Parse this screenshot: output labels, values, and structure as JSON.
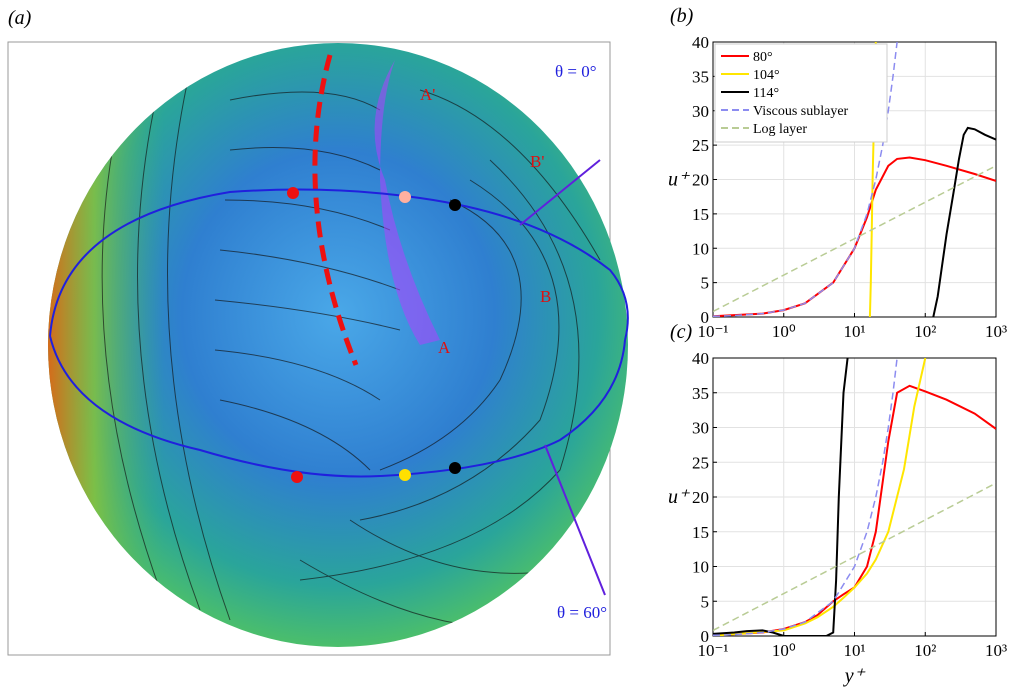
{
  "panel_a": {
    "label": "(a)",
    "annotations": [
      "A'",
      "B'",
      "B",
      "A",
      "θ = 0°",
      "θ = 60°"
    ]
  },
  "chart_data": [
    {
      "type": "line",
      "panel_label": "(b)",
      "y_label": "u⁺",
      "xscale": "log",
      "grid": true,
      "legend": "upper left",
      "xlim": [
        0.1,
        1000
      ],
      "ylim": [
        0,
        40
      ],
      "xticks": [
        {
          "value": 0.1,
          "label": "10⁻¹"
        },
        {
          "value": 1,
          "label": "10⁰"
        },
        {
          "value": 10,
          "label": "10¹"
        },
        {
          "value": 100,
          "label": "10²"
        },
        {
          "value": 1000,
          "label": "10³"
        }
      ],
      "yticks": [
        0,
        5,
        10,
        15,
        20,
        25,
        30,
        35,
        40
      ],
      "series": [
        {
          "name": "80°",
          "color": "#ff0000",
          "dashed": false,
          "x": [
            0.1,
            0.5,
            1,
            2,
            5,
            10,
            15,
            20,
            30,
            40,
            60,
            100,
            200,
            500,
            1000
          ],
          "values": [
            0.1,
            0.5,
            1,
            2,
            5,
            10,
            14.5,
            18.5,
            22,
            23,
            23.2,
            22.8,
            22,
            20.8,
            19.8
          ]
        },
        {
          "name": "104°",
          "color": "#ffe600",
          "dashed": false,
          "x": [
            16.5,
            17,
            17.5,
            18,
            19,
            20
          ],
          "values": [
            0,
            5,
            12,
            20,
            30,
            40
          ]
        },
        {
          "name": "114°",
          "color": "#000000",
          "dashed": false,
          "x": [
            130,
            150,
            170,
            200,
            250,
            300,
            350,
            400,
            500,
            700,
            1000
          ],
          "values": [
            0,
            3,
            7,
            12,
            18,
            23,
            26.5,
            27.5,
            27.3,
            26.5,
            25.8
          ]
        },
        {
          "name": "Viscous sublayer",
          "color": "#8c8cf0",
          "dashed": true,
          "x": [
            0.1,
            0.2,
            0.5,
            1,
            2,
            5,
            10,
            15,
            20,
            25,
            30,
            35,
            40
          ],
          "values": [
            0.1,
            0.2,
            0.5,
            1,
            2,
            5,
            10,
            15,
            20,
            25,
            30,
            35,
            40
          ]
        },
        {
          "name": "Log layer",
          "color": "#b9cc95",
          "dashed": true,
          "x": [
            0.1,
            1000
          ],
          "values": [
            0.8,
            22
          ]
        }
      ]
    },
    {
      "type": "line",
      "panel_label": "(c)",
      "y_label": "u⁺",
      "x_label": "y⁺",
      "xscale": "log",
      "grid": true,
      "xlim": [
        0.1,
        1000
      ],
      "ylim": [
        0,
        40
      ],
      "xticks": [
        {
          "value": 0.1,
          "label": "10⁻¹"
        },
        {
          "value": 1,
          "label": "10⁰"
        },
        {
          "value": 10,
          "label": "10¹"
        },
        {
          "value": 100,
          "label": "10²"
        },
        {
          "value": 1000,
          "label": "10³"
        }
      ],
      "yticks": [
        0,
        5,
        10,
        15,
        20,
        25,
        30,
        35,
        40
      ],
      "series": [
        {
          "color": "#ff0000",
          "dashed": false,
          "x": [
            0.1,
            0.5,
            1,
            2,
            3,
            5,
            7,
            10,
            15,
            20,
            30,
            40,
            60,
            100,
            200,
            500,
            1000
          ],
          "values": [
            0.1,
            0.5,
            1,
            2,
            3,
            5,
            6,
            7,
            10,
            15,
            28,
            35,
            36,
            35.2,
            34,
            32,
            29.8
          ]
        },
        {
          "color": "#ffe600",
          "dashed": false,
          "x": [
            0.1,
            1,
            2,
            3,
            5,
            7,
            10,
            15,
            20,
            30,
            50,
            70,
            100
          ],
          "values": [
            0.05,
            0.8,
            1.8,
            2.7,
            4.2,
            5.5,
            7,
            9,
            11,
            15,
            24,
            33,
            40
          ]
        },
        {
          "color": "#000000",
          "dashed": false,
          "x": [
            0.1,
            0.2,
            0.3,
            0.5,
            0.7,
            1,
            2,
            3,
            4,
            5,
            5.5,
            6,
            7,
            8
          ],
          "values": [
            0.3,
            0.5,
            0.7,
            0.8,
            0.5,
            0,
            0,
            0,
            0,
            0.5,
            8,
            20,
            35,
            40
          ]
        },
        {
          "color": "#8c8cf0",
          "dashed": true,
          "x": [
            0.1,
            0.2,
            0.5,
            1,
            2,
            5,
            10,
            15,
            20,
            25,
            30,
            35,
            40
          ],
          "values": [
            0.1,
            0.2,
            0.5,
            1,
            2,
            5,
            10,
            15,
            20,
            25,
            30,
            35,
            40
          ]
        },
        {
          "color": "#b9cc95",
          "dashed": true,
          "x": [
            0.1,
            1000
          ],
          "values": [
            0.8,
            22
          ]
        }
      ]
    }
  ]
}
